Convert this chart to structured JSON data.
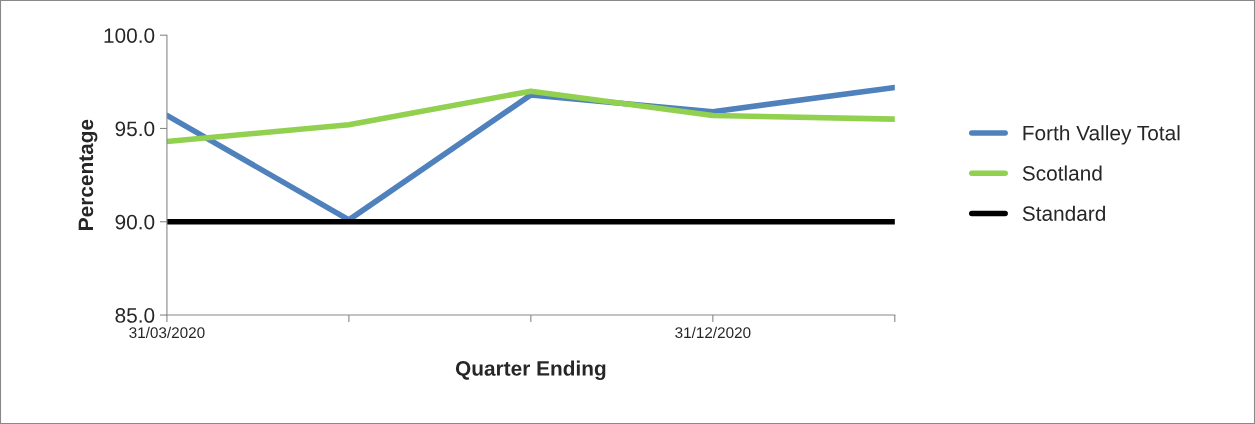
{
  "chart_data": {
    "type": "line",
    "xlabel": "Quarter Ending",
    "ylabel": "Percentage",
    "categories": [
      "31/03/2020",
      null,
      null,
      "31/12/2020",
      null
    ],
    "series": [
      {
        "name": "Forth Valley Total",
        "color": "#4f81bd",
        "values": [
          95.7,
          90.1,
          96.8,
          95.9,
          97.2
        ]
      },
      {
        "name": "Scotland",
        "color": "#92d050",
        "values": [
          94.3,
          95.2,
          97.0,
          95.7,
          95.5
        ]
      },
      {
        "name": "Standard",
        "color": "#000000",
        "values": [
          90,
          90,
          90,
          90,
          90
        ]
      }
    ],
    "ylim": [
      85,
      100
    ],
    "yticks": [
      {
        "value": 85,
        "label": "85.0"
      },
      {
        "value": 90,
        "label": "90.0"
      },
      {
        "value": 95,
        "label": "95.0"
      },
      {
        "value": 100,
        "label": "100.0"
      }
    ],
    "grid": false,
    "legend": "right",
    "marker": "none",
    "line_style": "solid"
  }
}
